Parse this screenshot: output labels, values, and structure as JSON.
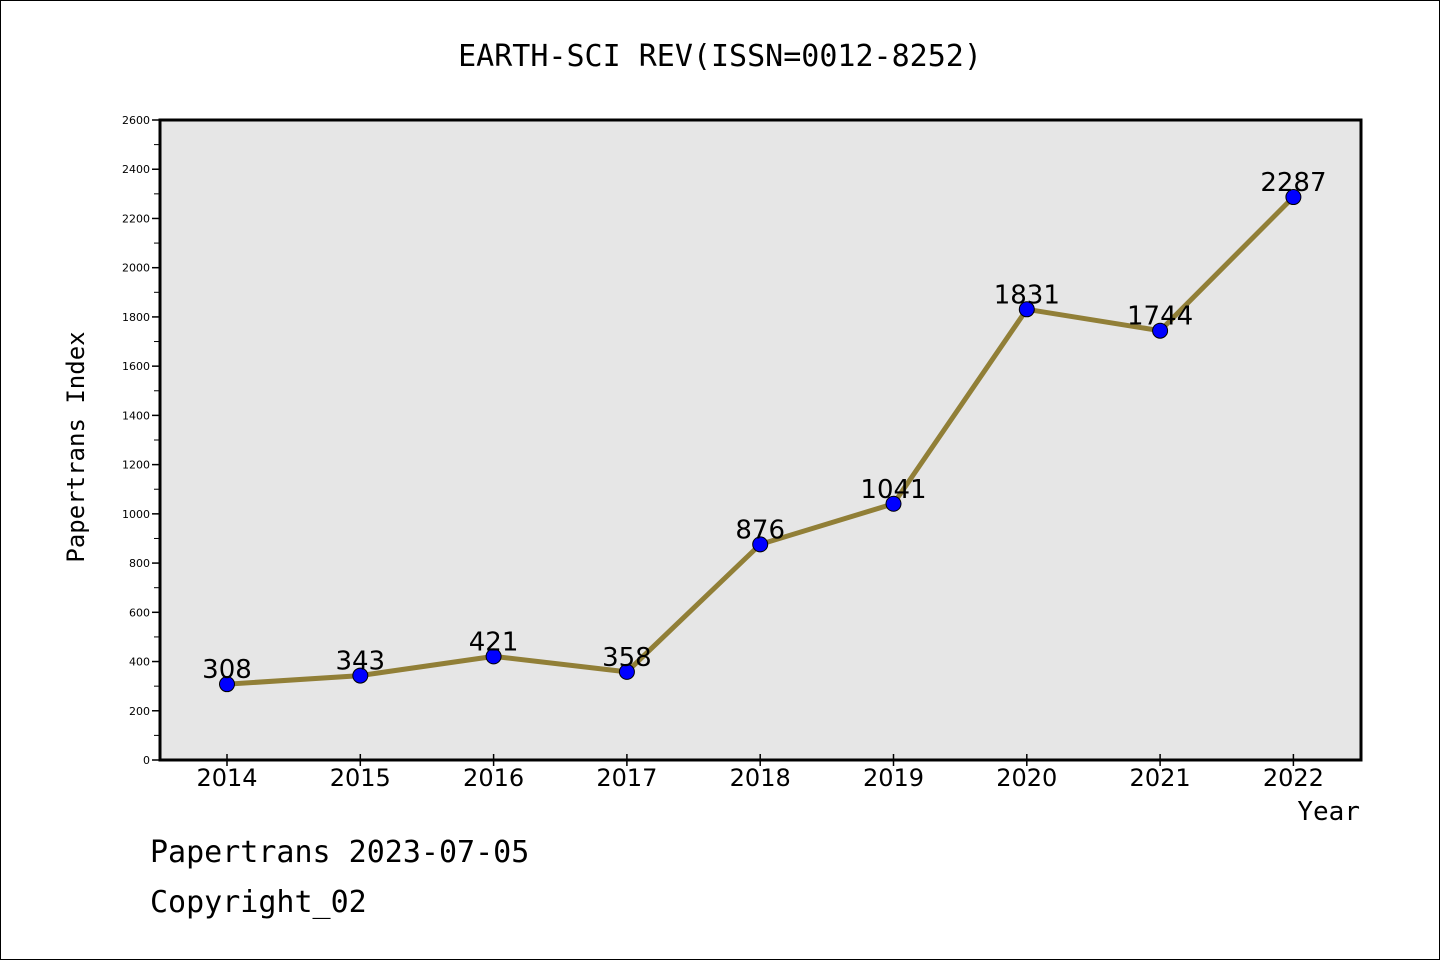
{
  "chart_data": {
    "type": "line",
    "title": "EARTH-SCI REV(ISSN=0012-8252)",
    "xlabel": "Year",
    "ylabel": "Papertrans Index",
    "categories": [
      "2014",
      "2015",
      "2016",
      "2017",
      "2018",
      "2019",
      "2020",
      "2021",
      "2022"
    ],
    "series": [
      {
        "values": [
          308,
          343,
          421,
          358,
          876,
          1041,
          1831,
          1744,
          2287
        ],
        "labels": [
          "308",
          "343",
          "421",
          "358",
          "876",
          "1041",
          "1831",
          "1744",
          "2287"
        ]
      }
    ],
    "ylim": [
      0,
      2600
    ],
    "yticks": [
      "0",
      "200",
      "400",
      "600",
      "800",
      "1000",
      "1200",
      "1400",
      "1600",
      "1800",
      "2000",
      "2200",
      "2400",
      "2600"
    ],
    "grid": false,
    "colors": {
      "line": "#917f37",
      "marker": "#0000ff",
      "plot_bg": "#e6e6e6"
    }
  },
  "footer": {
    "line1": "Papertrans 2023-07-05",
    "line2": "Copyright_02"
  }
}
